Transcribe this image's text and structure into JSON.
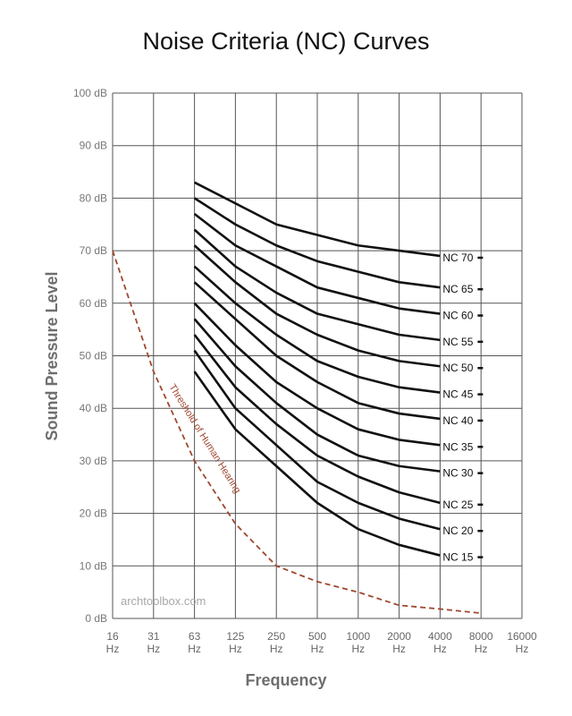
{
  "chart_data": {
    "type": "line",
    "title": "Noise Criteria (NC) Curves",
    "xlabel": "Frequency",
    "ylabel": "Sound Pressure Level",
    "y_ticks": [
      "0 dB",
      "10 dB",
      "20 dB",
      "30 dB",
      "40 dB",
      "50 dB",
      "60 dB",
      "70 dB",
      "80 dB",
      "90 dB",
      "100 dB"
    ],
    "ylim": [
      0,
      100
    ],
    "x_ticks": [
      {
        "value": "16",
        "unit": "Hz"
      },
      {
        "value": "31",
        "unit": "Hz"
      },
      {
        "value": "63",
        "unit": "Hz"
      },
      {
        "value": "125",
        "unit": "Hz"
      },
      {
        "value": "250",
        "unit": "Hz"
      },
      {
        "value": "500",
        "unit": "Hz"
      },
      {
        "value": "1000",
        "unit": "Hz"
      },
      {
        "value": "2000",
        "unit": "Hz"
      },
      {
        "value": "4000",
        "unit": "Hz"
      },
      {
        "value": "8000",
        "unit": "Hz"
      },
      {
        "value": "16000",
        "unit": "Hz"
      }
    ],
    "grid": true,
    "series": [
      {
        "name": "NC 70",
        "x": [
          "63",
          "125",
          "250",
          "500",
          "1000",
          "2000",
          "4000"
        ],
        "values": [
          83,
          79,
          75,
          73,
          71,
          70,
          69
        ]
      },
      {
        "name": "NC 65",
        "x": [
          "63",
          "125",
          "250",
          "500",
          "1000",
          "2000",
          "4000"
        ],
        "values": [
          80,
          75,
          71,
          68,
          66,
          64,
          63
        ]
      },
      {
        "name": "NC 60",
        "x": [
          "63",
          "125",
          "250",
          "500",
          "1000",
          "2000",
          "4000"
        ],
        "values": [
          77,
          71,
          67,
          63,
          61,
          59,
          58
        ]
      },
      {
        "name": "NC 55",
        "x": [
          "63",
          "125",
          "250",
          "500",
          "1000",
          "2000",
          "4000"
        ],
        "values": [
          74,
          67,
          62,
          58,
          56,
          54,
          53
        ]
      },
      {
        "name": "NC 50",
        "x": [
          "63",
          "125",
          "250",
          "500",
          "1000",
          "2000",
          "4000"
        ],
        "values": [
          71,
          64,
          58,
          54,
          51,
          49,
          48
        ]
      },
      {
        "name": "NC 45",
        "x": [
          "63",
          "125",
          "250",
          "500",
          "1000",
          "2000",
          "4000"
        ],
        "values": [
          67,
          60,
          54,
          49,
          46,
          44,
          43
        ]
      },
      {
        "name": "NC 40",
        "x": [
          "63",
          "125",
          "250",
          "500",
          "1000",
          "2000",
          "4000"
        ],
        "values": [
          64,
          57,
          50,
          45,
          41,
          39,
          38
        ]
      },
      {
        "name": "NC 35",
        "x": [
          "63",
          "125",
          "250",
          "500",
          "1000",
          "2000",
          "4000"
        ],
        "values": [
          60,
          52,
          45,
          40,
          36,
          34,
          33
        ]
      },
      {
        "name": "NC 30",
        "x": [
          "63",
          "125",
          "250",
          "500",
          "1000",
          "2000",
          "4000"
        ],
        "values": [
          57,
          48,
          41,
          35,
          31,
          29,
          28
        ]
      },
      {
        "name": "NC 25",
        "x": [
          "63",
          "125",
          "250",
          "500",
          "1000",
          "2000",
          "4000"
        ],
        "values": [
          54,
          44,
          37,
          31,
          27,
          24,
          22
        ]
      },
      {
        "name": "NC 20",
        "x": [
          "63",
          "125",
          "250",
          "500",
          "1000",
          "2000",
          "4000"
        ],
        "values": [
          51,
          40,
          33,
          26,
          22,
          19,
          17
        ]
      },
      {
        "name": "NC 15",
        "x": [
          "63",
          "125",
          "250",
          "500",
          "1000",
          "2000",
          "4000"
        ],
        "values": [
          47,
          36,
          29,
          22,
          17,
          14,
          12
        ]
      }
    ],
    "threshold": {
      "name": "Threshold of Human Hearing",
      "x": [
        "16",
        "31",
        "63",
        "125",
        "250",
        "500",
        "1000",
        "2000",
        "4000",
        "8000"
      ],
      "values": [
        70,
        47,
        30,
        18,
        10,
        7,
        5,
        2.5,
        1.8,
        1
      ]
    },
    "annotations": {
      "watermark": "archtoolbox.com"
    },
    "colors": {
      "curves": "#111111",
      "threshold": "#a0472f",
      "grid": "#555555",
      "axis_text": "#6e6e6e"
    }
  }
}
